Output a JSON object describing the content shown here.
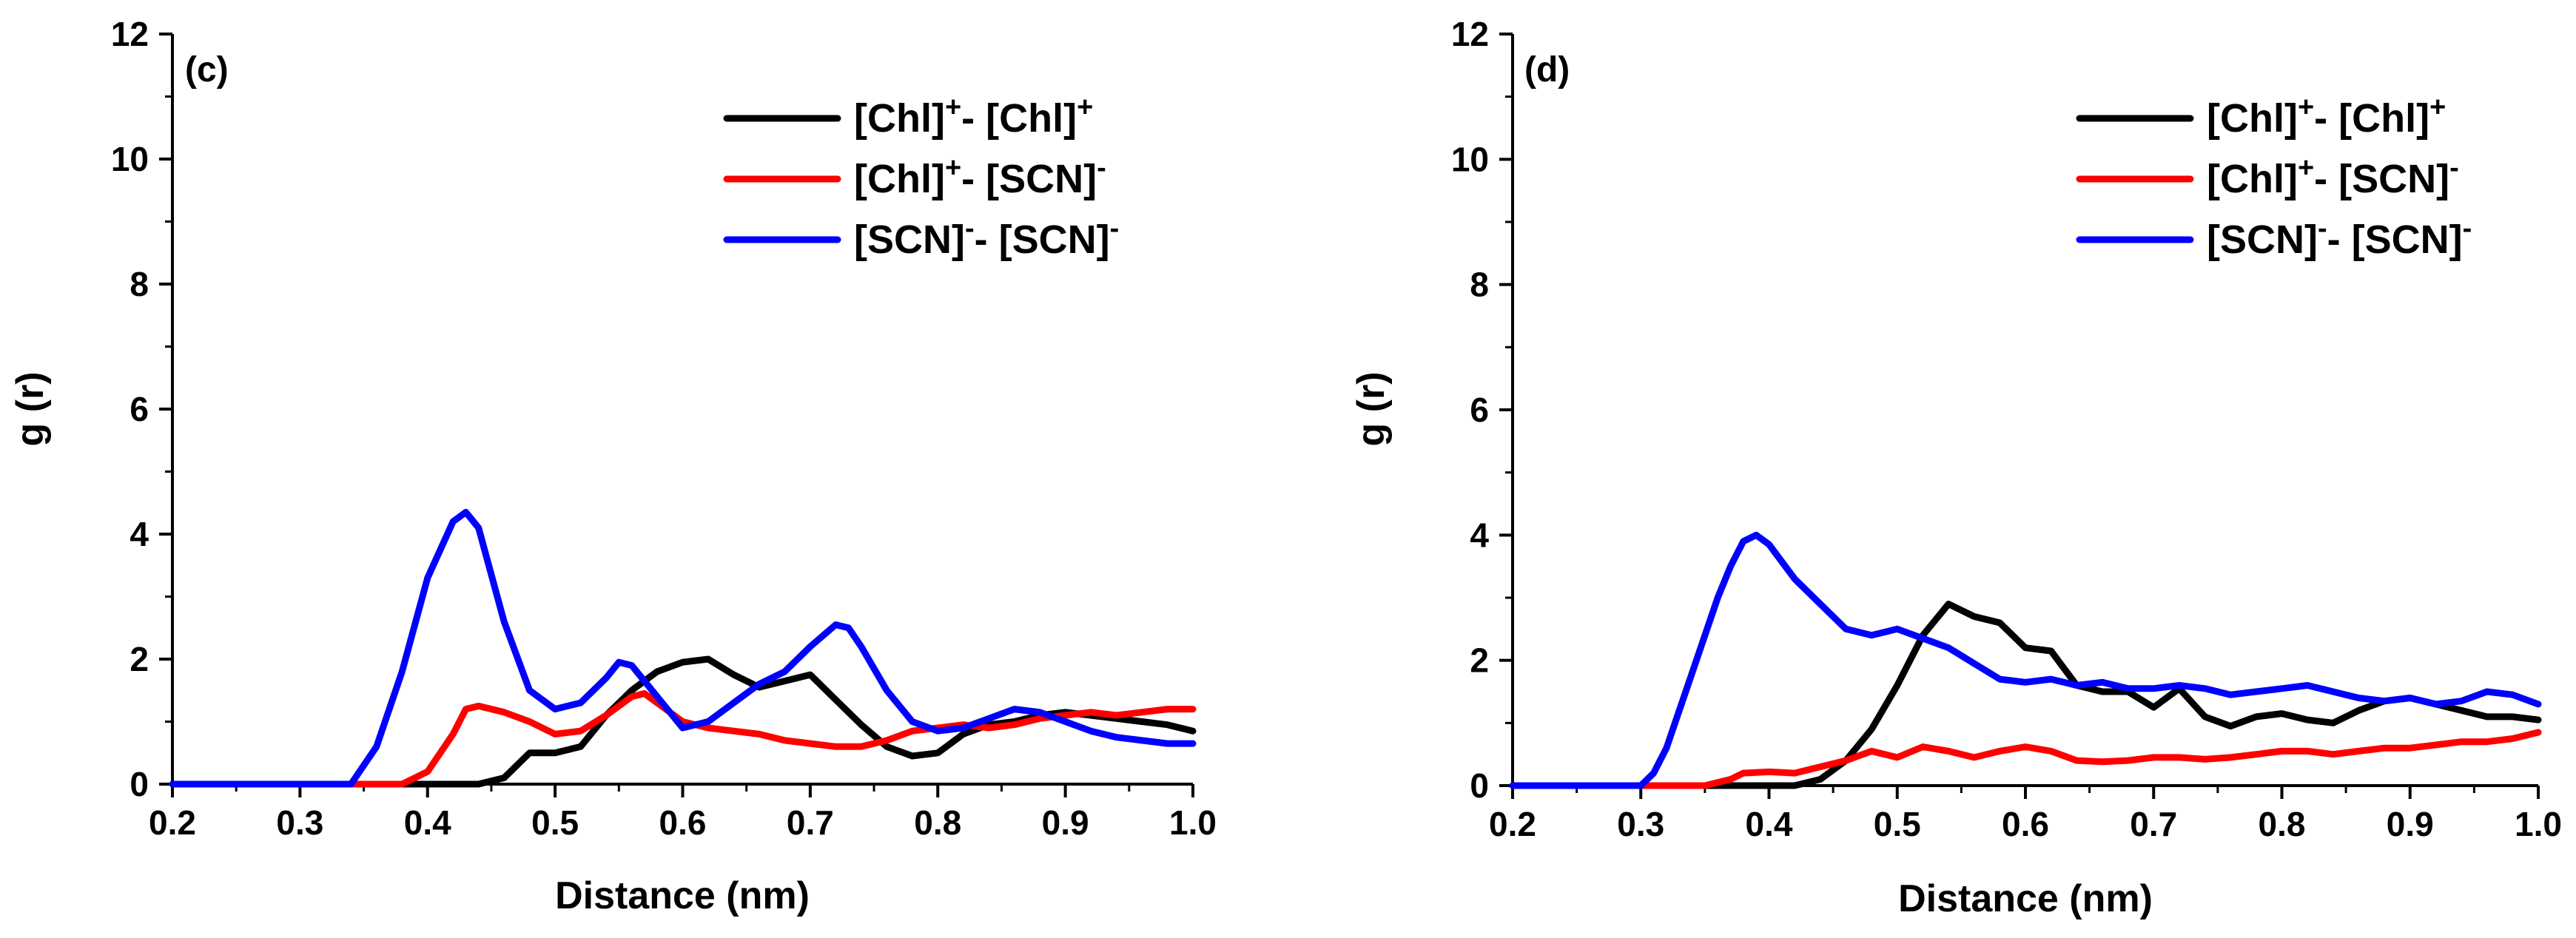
{
  "chart_data": [
    {
      "type": "line",
      "panel_label": "(c)",
      "xlabel": "Distance (nm)",
      "ylabel": "g (r)",
      "xlim": [
        0.2,
        1.0
      ],
      "ylim": [
        0,
        12
      ],
      "x_ticks": [
        "0.2",
        "0.3",
        "0.4",
        "0.5",
        "0.6",
        "0.7",
        "0.8",
        "0.9",
        "1.0"
      ],
      "y_ticks": [
        "0",
        "2",
        "4",
        "6",
        "8",
        "10",
        "12"
      ],
      "legend_position": "top-right",
      "series": [
        {
          "name": "[Chl]+- [Chl]+",
          "label_parts": [
            {
              "t": "[Chl]"
            },
            {
              "sup": "+"
            },
            {
              "t": "- [Chl]"
            },
            {
              "sup": "+"
            }
          ],
          "color": "#000000",
          "x": [
            0.2,
            0.44,
            0.46,
            0.48,
            0.5,
            0.52,
            0.54,
            0.56,
            0.58,
            0.6,
            0.62,
            0.64,
            0.66,
            0.68,
            0.7,
            0.72,
            0.74,
            0.76,
            0.78,
            0.8,
            0.82,
            0.84,
            0.86,
            0.88,
            0.9,
            0.92,
            0.94,
            0.96,
            0.98,
            1.0
          ],
          "y": [
            0,
            0,
            0.1,
            0.5,
            0.5,
            0.6,
            1.1,
            1.5,
            1.8,
            1.95,
            2.0,
            1.75,
            1.55,
            1.65,
            1.75,
            1.35,
            0.95,
            0.6,
            0.45,
            0.5,
            0.8,
            0.95,
            1.0,
            1.1,
            1.15,
            1.1,
            1.05,
            1.0,
            0.95,
            0.85
          ]
        },
        {
          "name": "[Chl]+- [SCN]-",
          "label_parts": [
            {
              "t": "[Chl]"
            },
            {
              "sup": "+"
            },
            {
              "t": "- [SCN]"
            },
            {
              "sup": "-"
            }
          ],
          "color": "#ff0000",
          "x": [
            0.2,
            0.38,
            0.4,
            0.42,
            0.43,
            0.44,
            0.46,
            0.48,
            0.5,
            0.52,
            0.54,
            0.56,
            0.57,
            0.58,
            0.6,
            0.62,
            0.64,
            0.66,
            0.68,
            0.7,
            0.72,
            0.74,
            0.76,
            0.78,
            0.8,
            0.82,
            0.84,
            0.86,
            0.88,
            0.9,
            0.92,
            0.94,
            0.96,
            0.98,
            1.0
          ],
          "y": [
            0,
            0,
            0.2,
            0.8,
            1.2,
            1.25,
            1.15,
            1.0,
            0.8,
            0.85,
            1.1,
            1.4,
            1.45,
            1.3,
            1.0,
            0.9,
            0.85,
            0.8,
            0.7,
            0.65,
            0.6,
            0.6,
            0.7,
            0.85,
            0.9,
            0.95,
            0.9,
            0.95,
            1.05,
            1.1,
            1.15,
            1.1,
            1.15,
            1.2,
            1.2
          ]
        },
        {
          "name": "[SCN]-- [SCN]-",
          "label_parts": [
            {
              "t": "[SCN]"
            },
            {
              "sup": "-"
            },
            {
              "t": "- [SCN]"
            },
            {
              "sup": "-"
            }
          ],
          "color": "#0000ff",
          "x": [
            0.2,
            0.34,
            0.36,
            0.38,
            0.4,
            0.42,
            0.43,
            0.44,
            0.46,
            0.48,
            0.5,
            0.52,
            0.54,
            0.55,
            0.56,
            0.58,
            0.6,
            0.62,
            0.64,
            0.66,
            0.68,
            0.7,
            0.72,
            0.73,
            0.74,
            0.76,
            0.78,
            0.8,
            0.82,
            0.84,
            0.86,
            0.88,
            0.9,
            0.92,
            0.94,
            0.96,
            0.98,
            1.0
          ],
          "y": [
            0,
            0,
            0.6,
            1.8,
            3.3,
            4.2,
            4.35,
            4.1,
            2.6,
            1.5,
            1.2,
            1.3,
            1.7,
            1.95,
            1.9,
            1.4,
            0.9,
            1.0,
            1.3,
            1.6,
            1.8,
            2.2,
            2.55,
            2.5,
            2.2,
            1.5,
            1.0,
            0.85,
            0.9,
            1.05,
            1.2,
            1.15,
            1.0,
            0.85,
            0.75,
            0.7,
            0.65,
            0.65
          ]
        }
      ]
    },
    {
      "type": "line",
      "panel_label": "(d)",
      "xlabel": "Distance (nm)",
      "ylabel": "g (r)",
      "xlim": [
        0.2,
        1.0
      ],
      "ylim": [
        0,
        12
      ],
      "x_ticks": [
        "0.2",
        "0.3",
        "0.4",
        "0.5",
        "0.6",
        "0.7",
        "0.8",
        "0.9",
        "1.0"
      ],
      "y_ticks": [
        "0",
        "2",
        "4",
        "6",
        "8",
        "10",
        "12"
      ],
      "legend_position": "top-right",
      "series": [
        {
          "name": "[Chl]+- [Chl]+",
          "label_parts": [
            {
              "t": "[Chl]"
            },
            {
              "sup": "+"
            },
            {
              "t": "- [Chl]"
            },
            {
              "sup": "+"
            }
          ],
          "color": "#000000",
          "x": [
            0.2,
            0.42,
            0.44,
            0.46,
            0.48,
            0.5,
            0.52,
            0.54,
            0.56,
            0.58,
            0.6,
            0.62,
            0.64,
            0.66,
            0.68,
            0.7,
            0.72,
            0.74,
            0.76,
            0.78,
            0.8,
            0.82,
            0.84,
            0.86,
            0.88,
            0.9,
            0.92,
            0.94,
            0.96,
            0.98,
            1.0
          ],
          "y": [
            0,
            0,
            0.1,
            0.4,
            0.9,
            1.6,
            2.4,
            2.9,
            2.7,
            2.6,
            2.2,
            2.15,
            1.6,
            1.5,
            1.5,
            1.25,
            1.55,
            1.1,
            0.95,
            1.1,
            1.15,
            1.05,
            1.0,
            1.2,
            1.35,
            1.4,
            1.3,
            1.2,
            1.1,
            1.1,
            1.05
          ]
        },
        {
          "name": "[Chl]+- [SCN]-",
          "label_parts": [
            {
              "t": "[Chl]"
            },
            {
              "sup": "+"
            },
            {
              "t": "- [SCN]"
            },
            {
              "sup": "-"
            }
          ],
          "color": "#ff0000",
          "x": [
            0.2,
            0.35,
            0.37,
            0.38,
            0.4,
            0.42,
            0.44,
            0.46,
            0.48,
            0.5,
            0.52,
            0.54,
            0.56,
            0.58,
            0.6,
            0.62,
            0.64,
            0.66,
            0.68,
            0.7,
            0.72,
            0.74,
            0.76,
            0.78,
            0.8,
            0.82,
            0.84,
            0.86,
            0.88,
            0.9,
            0.92,
            0.94,
            0.96,
            0.98,
            1.0
          ],
          "y": [
            0,
            0,
            0.1,
            0.2,
            0.22,
            0.2,
            0.3,
            0.4,
            0.55,
            0.45,
            0.62,
            0.55,
            0.45,
            0.55,
            0.62,
            0.55,
            0.4,
            0.38,
            0.4,
            0.45,
            0.45,
            0.42,
            0.45,
            0.5,
            0.55,
            0.55,
            0.5,
            0.55,
            0.6,
            0.6,
            0.65,
            0.7,
            0.7,
            0.75,
            0.85
          ]
        },
        {
          "name": "[SCN]-- [SCN]-",
          "label_parts": [
            {
              "t": "[SCN]"
            },
            {
              "sup": "-"
            },
            {
              "t": "- [SCN]"
            },
            {
              "sup": "-"
            }
          ],
          "color": "#0000ff",
          "x": [
            0.2,
            0.3,
            0.31,
            0.32,
            0.34,
            0.36,
            0.37,
            0.38,
            0.39,
            0.4,
            0.42,
            0.44,
            0.46,
            0.48,
            0.5,
            0.52,
            0.54,
            0.56,
            0.58,
            0.6,
            0.62,
            0.64,
            0.66,
            0.68,
            0.7,
            0.72,
            0.74,
            0.76,
            0.78,
            0.8,
            0.82,
            0.84,
            0.86,
            0.88,
            0.9,
            0.92,
            0.94,
            0.96,
            0.98,
            1.0
          ],
          "y": [
            0,
            0,
            0.2,
            0.6,
            1.8,
            3.0,
            3.5,
            3.9,
            4.0,
            3.85,
            3.3,
            2.9,
            2.5,
            2.4,
            2.5,
            2.35,
            2.2,
            1.95,
            1.7,
            1.65,
            1.7,
            1.6,
            1.65,
            1.55,
            1.55,
            1.6,
            1.55,
            1.45,
            1.5,
            1.55,
            1.6,
            1.5,
            1.4,
            1.35,
            1.4,
            1.3,
            1.35,
            1.5,
            1.45,
            1.3
          ]
        }
      ]
    }
  ]
}
